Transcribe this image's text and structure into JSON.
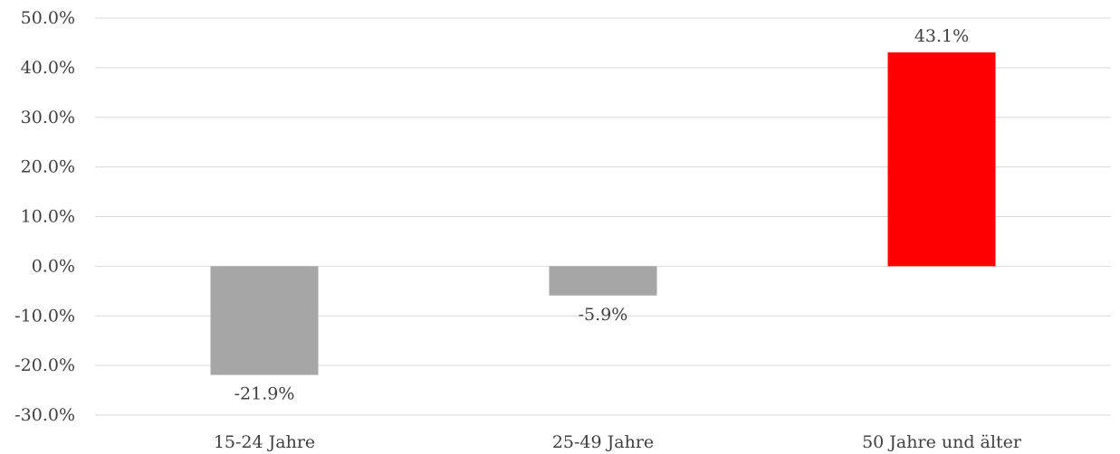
{
  "chart_data": {
    "type": "bar",
    "title": "",
    "xlabel": "",
    "ylabel": "",
    "categories": [
      "15-24 Jahre",
      "25-49 Jahre",
      "50 Jahre und älter"
    ],
    "values": [
      -21.9,
      -5.9,
      43.1
    ],
    "data_labels": [
      "-21.9%",
      "-5.9%",
      "43.1%"
    ],
    "colors": [
      "#a6a6a6",
      "#a6a6a6",
      "#ff0000"
    ],
    "ylim": [
      -30,
      50
    ],
    "yticks": [
      50,
      40,
      30,
      20,
      10,
      0,
      -10,
      -20,
      -30
    ],
    "ytick_labels": [
      "50.0%",
      "40.0%",
      "30.0%",
      "20.0%",
      "10.0%",
      "0.0%",
      "-10.0%",
      "-20.0%",
      "-30.0%"
    ],
    "grid": true,
    "legend": "none"
  }
}
